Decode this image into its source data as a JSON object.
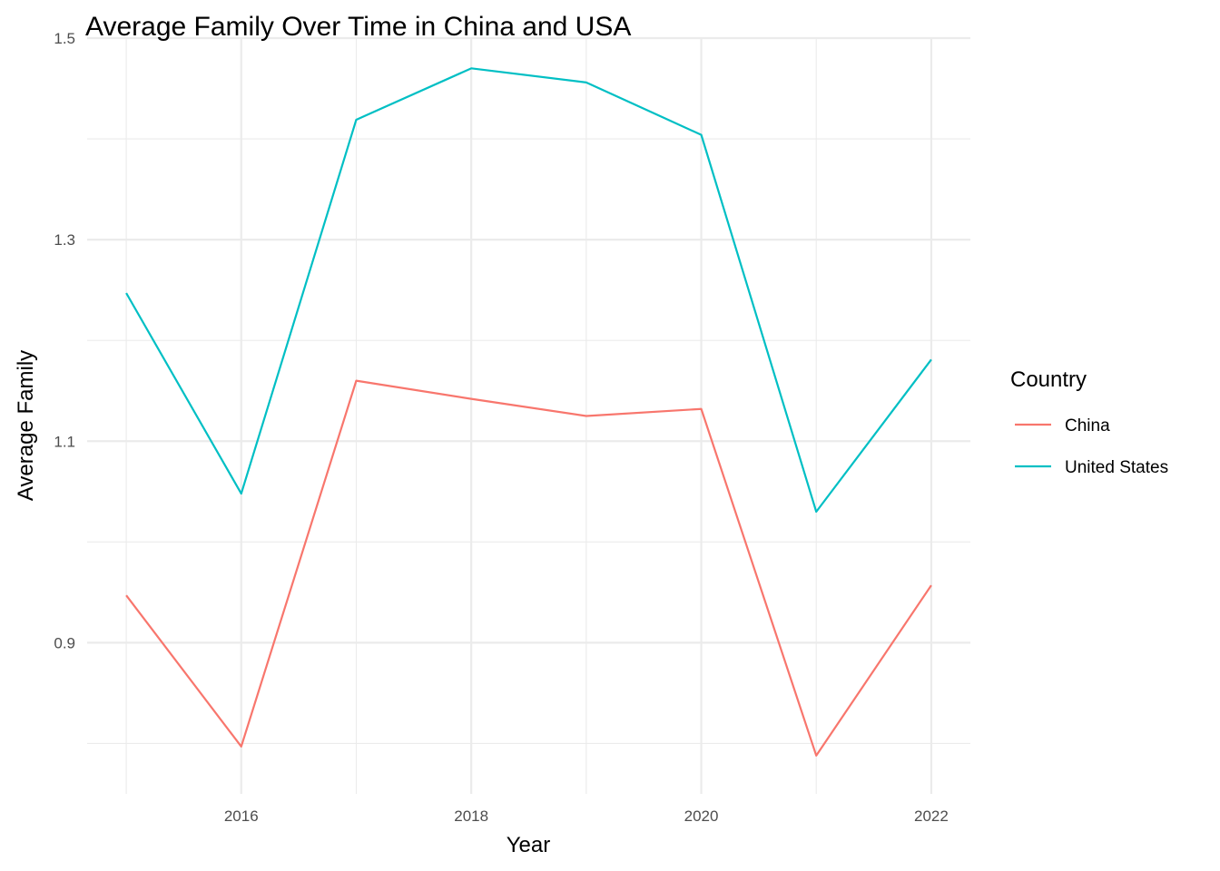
{
  "chart_data": {
    "type": "line",
    "title": "Average Family Over Time in China and USA",
    "xlabel": "Year",
    "ylabel": "Average Family",
    "x": [
      2015,
      2016,
      2017,
      2018,
      2019,
      2020,
      2021,
      2022
    ],
    "xlim": [
      2014.66,
      2022.34
    ],
    "ylim": [
      0.75,
      1.5
    ],
    "x_ticks": [
      2016,
      2018,
      2020,
      2022
    ],
    "y_ticks": [
      0.9,
      1.1,
      1.3,
      1.5
    ],
    "x_tick_labels": [
      "2016",
      "2018",
      "2020",
      "2022"
    ],
    "y_tick_labels": [
      "0.9",
      "1.1",
      "1.3",
      "1.5"
    ],
    "grid": true,
    "legend": {
      "title": "Country",
      "position": "right"
    },
    "series": [
      {
        "name": "China",
        "color": "#F8766D",
        "values": [
          0.947,
          0.797,
          1.16,
          1.142,
          1.125,
          1.132,
          0.788,
          0.957
        ]
      },
      {
        "name": "United States",
        "color": "#00BFC4",
        "values": [
          1.247,
          1.048,
          1.419,
          1.47,
          1.456,
          1.404,
          1.03,
          1.181
        ]
      }
    ]
  }
}
